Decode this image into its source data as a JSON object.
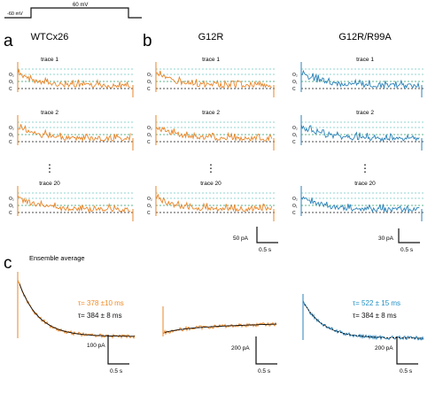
{
  "protocol": {
    "voltage_label": "60 mV",
    "holding_label": "-60 mV"
  },
  "panels": {
    "a": "a",
    "b": "b",
    "c": "c"
  },
  "columns": [
    "WTCx26",
    "G12R",
    "G12R/R99A"
  ],
  "trace_labels": [
    "trace 1",
    "trace 2",
    "trace 20"
  ],
  "ellipsis": "⋮",
  "level_labels": [
    "O₁",
    "O₂",
    "C"
  ],
  "ensemble_title": "Ensemble average",
  "scalebars_traces": [
    {
      "current": "50 pA",
      "time": "0.5 s"
    },
    {
      "current": "30 pA",
      "time": "0.5 s"
    }
  ],
  "scalebars_ensemble": [
    {
      "current": "100 pA",
      "time": "0.5 s"
    },
    {
      "current": "200 pA",
      "time": "0.5 s"
    },
    {
      "current": "200 pA",
      "time": "0.5 s"
    }
  ],
  "fits": [
    {
      "text": "τ= 378 ±10 ms",
      "color": "#f08a24"
    },
    {
      "text": "τ= 384 ± 8 ms",
      "color": "#111111"
    },
    {
      "text": "τ= 522 ± 15 ms",
      "color": "#1f8fc4"
    },
    {
      "text": "τ= 384 ± 8 ms",
      "color": "#111111"
    }
  ],
  "colors": {
    "orange": "#e8862a",
    "blue": "#2b82b8",
    "green": "#2a9d6a",
    "cyan": "#6cc7c2"
  },
  "chart_data": {
    "type": "line",
    "title": "",
    "x_unit": "s",
    "y_unit": "pA",
    "series": [
      {
        "name": "WTCx26",
        "color": "orange"
      },
      {
        "name": "G12R",
        "color": "orange"
      },
      {
        "name": "G12R/R99A",
        "color": "blue"
      }
    ],
    "ensemble_fit_tau_ms": {
      "WTCx26": 378,
      "G12R/R99A": 522,
      "reference": 384
    },
    "ensemble_fit_tau_error_ms": {
      "WTCx26": 10,
      "G12R/R99A": 15,
      "reference": 8
    }
  }
}
